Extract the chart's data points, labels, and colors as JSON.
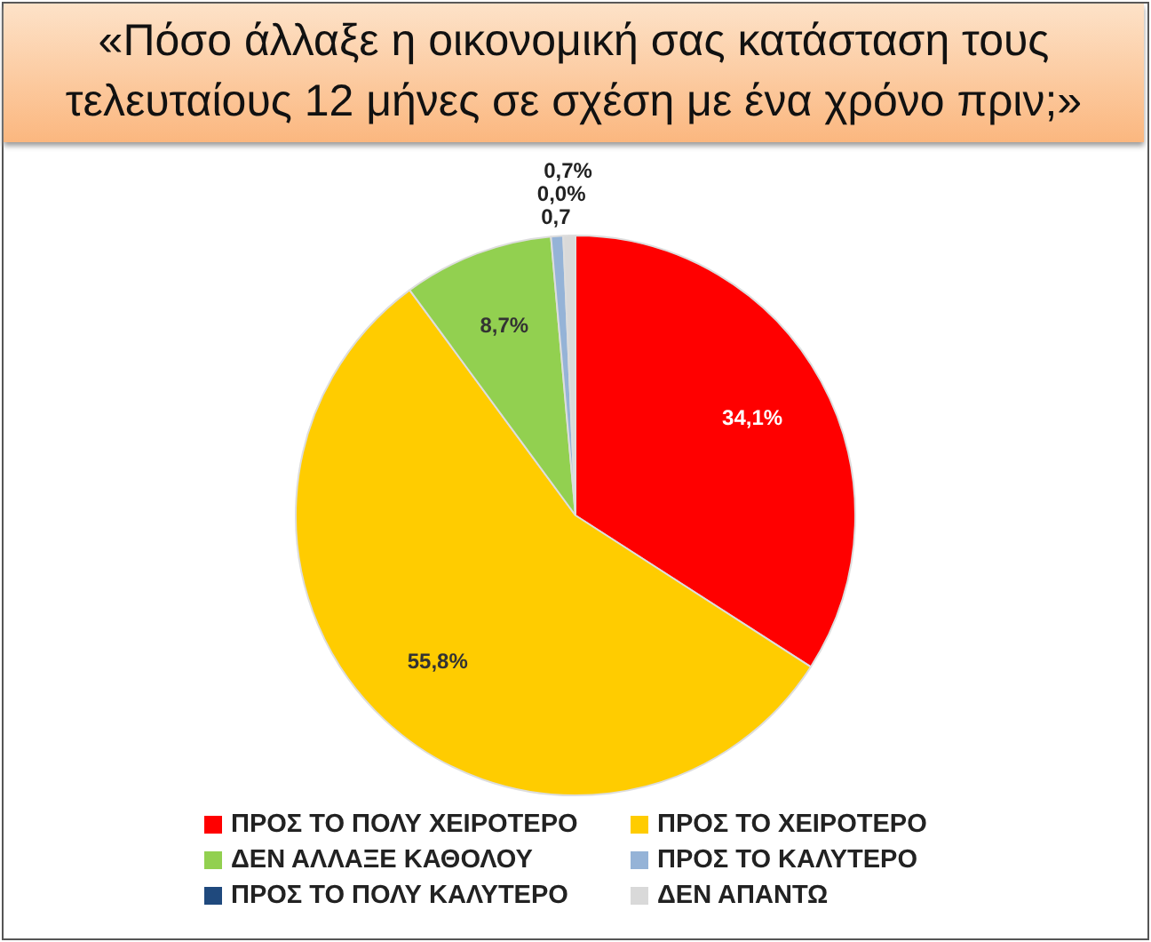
{
  "chart_data": {
    "type": "pie",
    "title": "«Πόσο άλλαξε η οικονομική σας κατάσταση τους τελευταίους 12 μήνες σε σχέση με ένα χρόνο πριν;»",
    "categories": [
      "ΠΡΟΣ ΤΟ ΠΟΛΥ ΧΕΙΡΟΤΕΡΟ",
      "ΠΡΟΣ ΤΟ ΧΕΙΡΟΤΕΡΟ",
      "ΔΕΝ ΑΛΛΑΞΕ ΚΑΘΟΛΟΥ",
      "ΠΡΟΣ ΤΟ ΚΑΛΥΤΕΡΟ",
      "ΠΡΟΣ ΤΟ ΠΟΛΥ ΚΑΛΥΤΕΡΟ",
      "ΔΕΝ ΑΠΑΝΤΩ"
    ],
    "values": [
      34.1,
      55.8,
      8.7,
      0.7,
      0.0,
      0.7
    ],
    "colors": [
      "#ff0000",
      "#ffcc00",
      "#92d050",
      "#95b3d7",
      "#1f497d",
      "#d9d9d9"
    ],
    "value_labels": [
      "34,1%",
      "55,8%",
      "8,7%",
      "0,7",
      "0,0%",
      "0,7%"
    ],
    "legend": "bottom"
  }
}
